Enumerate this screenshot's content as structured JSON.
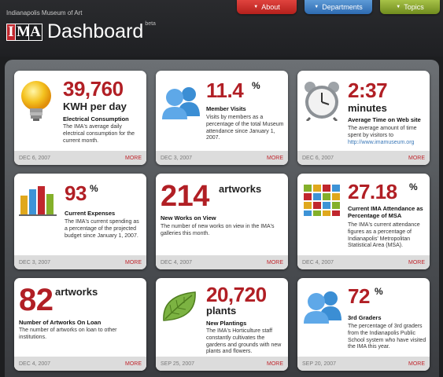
{
  "header": {
    "org": "Indianapolis Museum of Art",
    "logo": "IMA",
    "title": "Dashboard",
    "beta": "beta",
    "tabs": [
      {
        "label": "About",
        "color": "#c0262d"
      },
      {
        "label": "Departments",
        "color": "#3a78c0"
      },
      {
        "label": "Topics",
        "color": "#8aa62c"
      }
    ]
  },
  "cards": [
    {
      "value": "39,760",
      "unit": "KWH per day",
      "label": "Electrical Consumption",
      "desc": "The IMA's average daily electrical consumption for the current month.",
      "date": "DEC 6, 2007",
      "more": "MORE",
      "icon": "lightbulb-icon"
    },
    {
      "value": "11.4",
      "sup": "%",
      "label": "Member Visits",
      "desc": "Visits by members as a percentage of the total Museum attendance since January 1, 2007.",
      "date": "DEC 3, 2007",
      "more": "MORE",
      "icon": "people-icon"
    },
    {
      "value": "2:37",
      "unit": "minutes",
      "label": "Average Time on Web site",
      "desc": "The average amount of time spent by visitors to",
      "link": "http://www.imamuseum.org",
      "date": "DEC 6, 2007",
      "more": "MORE",
      "icon": "alarm-clock-icon"
    },
    {
      "value": "93",
      "sup": "%",
      "label": "Current Expenses",
      "desc": "The IMA's current spending as a percentage of the projected budget since January 1, 2007.",
      "date": "DEC 3, 2007",
      "more": "MORE",
      "icon": "bar-chart-icon"
    },
    {
      "value": "214",
      "unit": "artworks",
      "label": "New Works on View",
      "desc": "The number of new works on view in the IMA's galleries this month.",
      "date": "DEC 4, 2007",
      "more": "MORE"
    },
    {
      "value": "27.18",
      "sup": "%",
      "label": "Current IMA Attendance as Percentage of MSA",
      "desc": "The IMA's current attendance figures as a percentage of Indianapolis' Metropolitan Statistical Area (MSA).",
      "date": "DEC 4, 2007",
      "more": "MORE",
      "icon": "grid-icon"
    },
    {
      "value": "82",
      "unit": "artworks",
      "label": "Number of Artworks On Loan",
      "desc": "The number of artworks on loan to other institutions.",
      "date": "DEC 4, 2007",
      "more": "MORE"
    },
    {
      "value": "20,720",
      "unit": "plants",
      "label": "New Plantings",
      "desc": "The IMA's Horticulture staff constantly cultivates the gardens and grounds with new plants and flowers.",
      "date": "SEP 25, 2007",
      "more": "MORE",
      "icon": "leaf-icon"
    },
    {
      "value": "72",
      "sup": "%",
      "label": "3rd Graders",
      "desc": "The percentage of 3rd graders from the Indianapolis Public School system who have visited the IMA this year.",
      "date": "SEP 20, 2007",
      "more": "MORE",
      "icon": "people-icon"
    }
  ]
}
